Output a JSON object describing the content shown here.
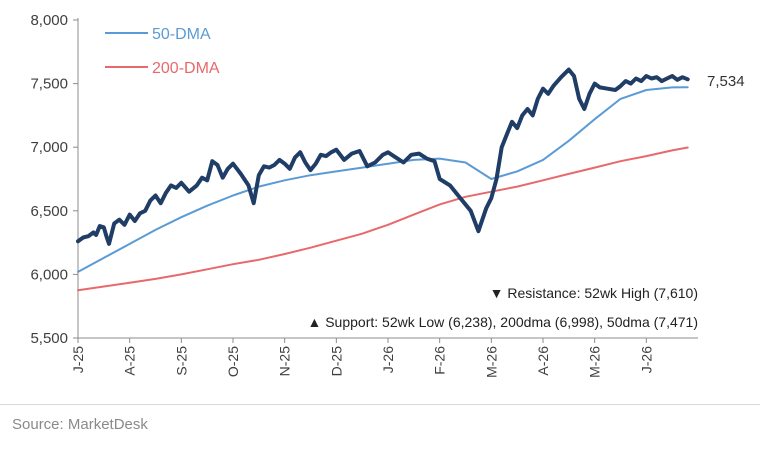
{
  "chart_data": {
    "type": "line",
    "title": "",
    "xlabel": "",
    "ylabel": "",
    "ylim": [
      5500,
      8000
    ],
    "yticks": [
      "8,000",
      "7,500",
      "7,000",
      "6,500",
      "6,000",
      "5,500"
    ],
    "ytick_values": [
      8000,
      7500,
      7000,
      6500,
      6000,
      5500
    ],
    "xticks": [
      "J-25",
      "A-25",
      "S-25",
      "O-25",
      "N-25",
      "D-25",
      "J-26",
      "F-26",
      "M-26",
      "A-26",
      "M-26",
      "J-26"
    ],
    "x_period_count": 12,
    "legend": {
      "placement": "top-left",
      "entries": [
        "50-DMA",
        "200-DMA"
      ]
    },
    "grid": false,
    "series": [
      {
        "name": "",
        "role": "price",
        "color": "#1f3d66",
        "x": [
          0,
          0.1,
          0.2,
          0.3,
          0.35,
          0.42,
          0.5,
          0.55,
          0.6,
          0.7,
          0.8,
          0.9,
          1.0,
          1.1,
          1.2,
          1.3,
          1.4,
          1.5,
          1.6,
          1.7,
          1.8,
          1.9,
          2.0,
          2.15,
          2.3,
          2.4,
          2.5,
          2.6,
          2.7,
          2.8,
          2.9,
          3.0,
          3.15,
          3.3,
          3.4,
          3.5,
          3.6,
          3.7,
          3.8,
          3.9,
          4.0,
          4.1,
          4.2,
          4.3,
          4.4,
          4.5,
          4.6,
          4.7,
          4.8,
          4.9,
          5.0,
          5.15,
          5.3,
          5.45,
          5.6,
          5.75,
          5.9,
          6.0,
          6.15,
          6.3,
          6.45,
          6.6,
          6.75,
          6.9,
          7.0,
          7.2,
          7.4,
          7.6,
          7.75,
          7.9,
          8.0,
          8.1,
          8.2,
          8.3,
          8.4,
          8.5,
          8.6,
          8.7,
          8.8,
          8.9,
          9.0,
          9.1,
          9.2,
          9.35,
          9.5,
          9.6,
          9.7,
          9.8,
          9.9,
          10.0,
          10.1,
          10.25,
          10.4,
          10.5,
          10.6,
          10.7,
          10.8,
          10.9,
          11.0,
          11.1,
          11.2,
          11.3,
          11.4,
          11.5,
          11.6,
          11.7,
          11.8
        ],
        "values": [
          6260,
          6290,
          6300,
          6330,
          6310,
          6380,
          6370,
          6300,
          6240,
          6400,
          6430,
          6390,
          6470,
          6420,
          6480,
          6500,
          6580,
          6620,
          6560,
          6640,
          6700,
          6680,
          6720,
          6650,
          6700,
          6760,
          6740,
          6890,
          6860,
          6760,
          6830,
          6870,
          6790,
          6700,
          6560,
          6780,
          6850,
          6840,
          6860,
          6900,
          6870,
          6830,
          6920,
          6960,
          6880,
          6820,
          6870,
          6940,
          6930,
          6960,
          6980,
          6900,
          6950,
          6970,
          6850,
          6880,
          6940,
          6960,
          6920,
          6880,
          6940,
          6950,
          6910,
          6890,
          6750,
          6700,
          6600,
          6500,
          6340,
          6520,
          6600,
          6750,
          7000,
          7100,
          7200,
          7150,
          7250,
          7300,
          7250,
          7380,
          7460,
          7420,
          7480,
          7550,
          7610,
          7560,
          7380,
          7300,
          7420,
          7500,
          7470,
          7460,
          7450,
          7480,
          7520,
          7500,
          7540,
          7520,
          7560,
          7540,
          7550,
          7520,
          7540,
          7560,
          7530,
          7550,
          7534
        ]
      },
      {
        "name": "50-DMA",
        "role": "ma50",
        "color": "#5b9bd5",
        "x": [
          0,
          0.5,
          1.0,
          1.5,
          2.0,
          2.5,
          3.0,
          3.5,
          4.0,
          4.5,
          5.0,
          5.5,
          6.0,
          6.5,
          7.0,
          7.5,
          8.0,
          8.5,
          9.0,
          9.5,
          10.0,
          10.5,
          11.0,
          11.5,
          11.8
        ],
        "values": [
          6020,
          6130,
          6240,
          6350,
          6450,
          6540,
          6620,
          6690,
          6740,
          6780,
          6810,
          6840,
          6870,
          6900,
          6910,
          6880,
          6750,
          6810,
          6900,
          7050,
          7220,
          7380,
          7450,
          7470,
          7471
        ]
      },
      {
        "name": "200-DMA",
        "role": "ma200",
        "color": "#e8696b",
        "x": [
          0,
          0.5,
          1.0,
          1.5,
          2.0,
          2.5,
          3.0,
          3.5,
          4.0,
          4.5,
          5.0,
          5.5,
          6.0,
          6.5,
          7.0,
          7.5,
          8.0,
          8.5,
          9.0,
          9.5,
          10.0,
          10.5,
          11.0,
          11.5,
          11.8
        ],
        "values": [
          5875,
          5905,
          5935,
          5965,
          6000,
          6040,
          6080,
          6115,
          6160,
          6210,
          6265,
          6320,
          6390,
          6470,
          6550,
          6610,
          6650,
          6690,
          6740,
          6790,
          6840,
          6890,
          6930,
          6975,
          6998
        ]
      }
    ],
    "end_label": "7,534",
    "annotations": [
      "▼ Resistance:  52wk High (7,610)",
      "▲ Support:  52wk Low (6,238), 200dma (6,998), 50dma (7,471)"
    ]
  },
  "footer": {
    "source": "Source: MarketDesk"
  }
}
